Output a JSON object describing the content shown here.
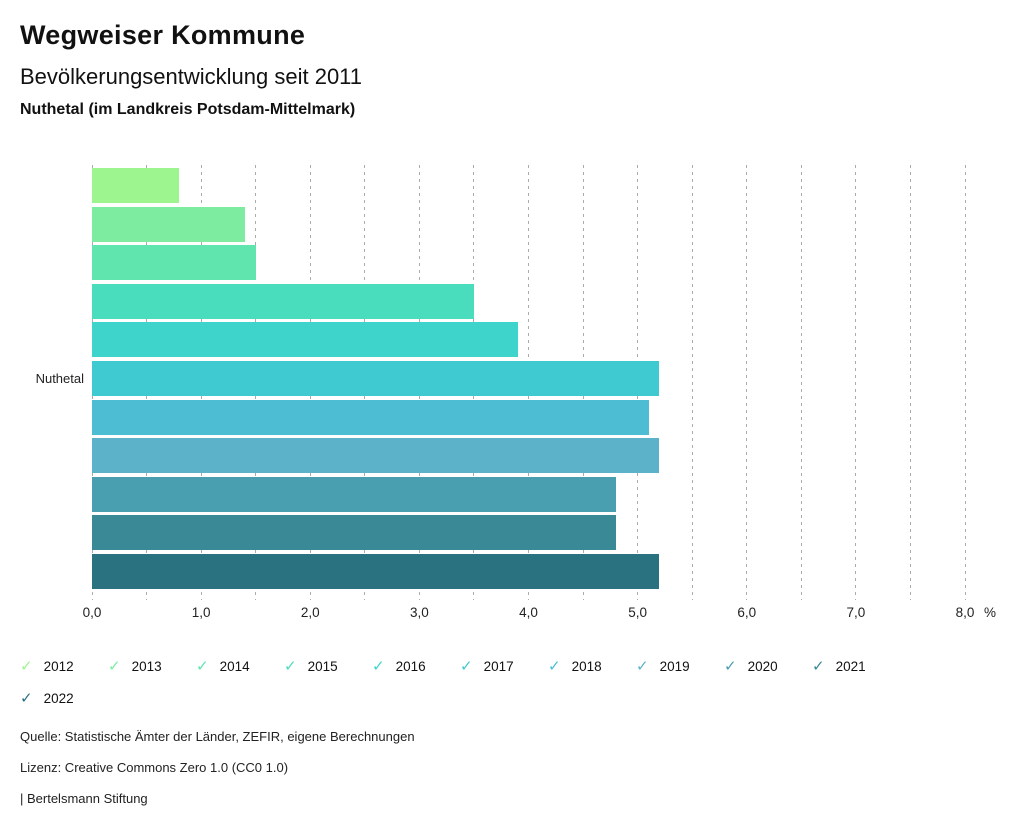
{
  "header": {
    "title": "Wegweiser Kommune",
    "subtitle": "Bevölkerungsentwicklung seit 2011",
    "location": "Nuthetal (im Landkreis Potsdam-Mittelmark)"
  },
  "chart_data": {
    "type": "bar",
    "orientation": "horizontal",
    "title": "Bevölkerungsentwicklung seit 2011",
    "category_label": "Nuthetal",
    "unit": "%",
    "xlim": [
      0,
      8
    ],
    "grid_step": 0.5,
    "x_tick_labels": [
      "0,0",
      "1,0",
      "2,0",
      "3,0",
      "4,0",
      "5,0",
      "6,0",
      "7,0",
      "8,0"
    ],
    "series": [
      {
        "name": "2012",
        "value": 0.8,
        "color": "#9CF58F"
      },
      {
        "name": "2013",
        "value": 1.4,
        "color": "#7DECA1"
      },
      {
        "name": "2014",
        "value": 1.5,
        "color": "#61E5AE"
      },
      {
        "name": "2015",
        "value": 3.5,
        "color": "#4ADDBD"
      },
      {
        "name": "2016",
        "value": 3.9,
        "color": "#3ED4CB"
      },
      {
        "name": "2017",
        "value": 5.2,
        "color": "#3FC9D0"
      },
      {
        "name": "2018",
        "value": 5.1,
        "color": "#4CBDD2"
      },
      {
        "name": "2019",
        "value": 5.2,
        "color": "#5CB3C9"
      },
      {
        "name": "2020",
        "value": 4.8,
        "color": "#499EAF"
      },
      {
        "name": "2021",
        "value": 4.8,
        "color": "#398997"
      },
      {
        "name": "2022",
        "value": 5.2,
        "color": "#2A7280"
      }
    ],
    "legend_check_glyph": "✓"
  },
  "footer": {
    "source": "Quelle: Statistische Ämter der Länder, ZEFIR, eigene Berechnungen",
    "license": "Lizenz: Creative Commons Zero 1.0 (CC0 1.0)",
    "attribution": "| Bertelsmann Stiftung"
  }
}
